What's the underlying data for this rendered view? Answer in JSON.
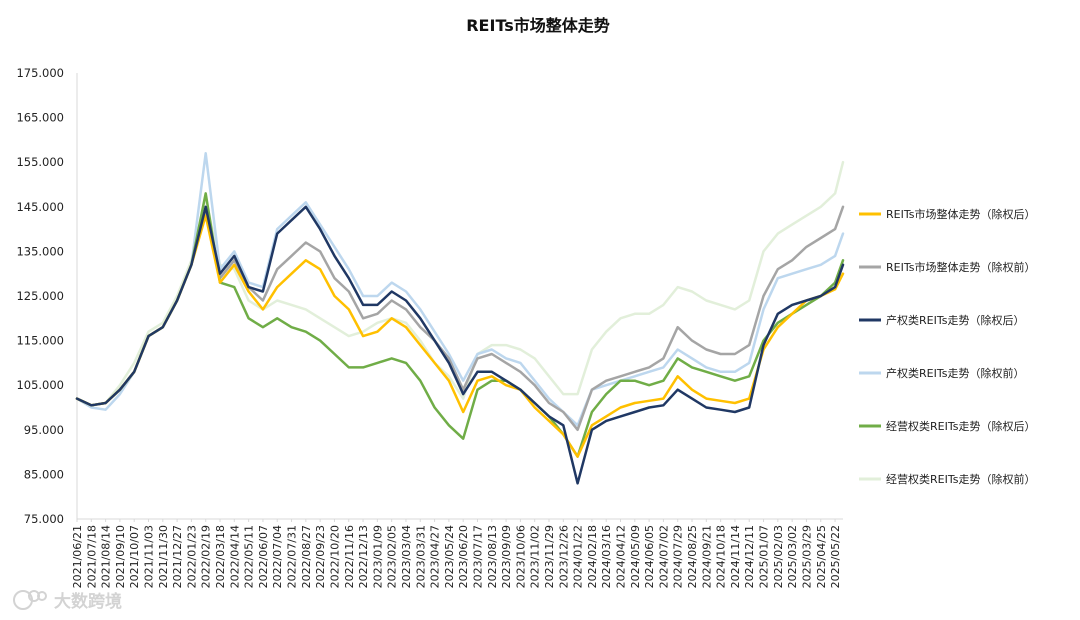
{
  "chart_data": {
    "type": "line",
    "title": "REITs市场整体走势",
    "xlabel": "",
    "ylabel": "",
    "ylim": [
      75,
      175
    ],
    "yticks": [
      "75.000",
      "85.000",
      "95.000",
      "105.000",
      "115.000",
      "125.000",
      "135.000",
      "145.000",
      "155.000",
      "165.000",
      "175.000"
    ],
    "grid": false,
    "legend_position": "right",
    "x_tick_labels": [
      "2021/06/21",
      "2021/07/18",
      "2021/08/14",
      "2021/09/10",
      "2021/10/07",
      "2021/11/03",
      "2021/11/30",
      "2021/12/27",
      "2022/01/23",
      "2022/02/19",
      "2022/03/18",
      "2022/04/14",
      "2022/05/11",
      "2022/06/07",
      "2022/07/04",
      "2022/07/31",
      "2022/08/27",
      "2022/09/23",
      "2022/10/20",
      "2022/11/16",
      "2022/12/13",
      "2023/01/09",
      "2023/02/05",
      "2023/03/04",
      "2023/03/31",
      "2023/04/27",
      "2023/05/24",
      "2023/06/20",
      "2023/07/17",
      "2023/08/13",
      "2023/09/09",
      "2023/10/06",
      "2023/11/02",
      "2023/11/29",
      "2023/12/26",
      "2024/01/22",
      "2024/02/18",
      "2024/03/16",
      "2024/04/12",
      "2024/05/09",
      "2024/06/05",
      "2024/07/02",
      "2024/07/29",
      "2024/08/25",
      "2024/09/21",
      "2024/10/18",
      "2024/11/14",
      "2024/12/11",
      "2025/01/07",
      "2025/02/03",
      "2025/03/02",
      "2025/03/29",
      "2025/04/25",
      "2025/05/22"
    ],
    "x": [
      "2021/06/21",
      "2021/07/18",
      "2021/08/14",
      "2021/09/10",
      "2021/10/07",
      "2021/11/03",
      "2021/11/30",
      "2021/12/27",
      "2022/01/23",
      "2022/02/19",
      "2022/03/18",
      "2022/04/14",
      "2022/05/11",
      "2022/06/07",
      "2022/07/04",
      "2022/07/31",
      "2022/08/27",
      "2022/09/23",
      "2022/10/20",
      "2022/11/16",
      "2022/12/13",
      "2023/01/09",
      "2023/02/05",
      "2023/03/04",
      "2023/03/31",
      "2023/04/27",
      "2023/05/24",
      "2023/06/20",
      "2023/07/17",
      "2023/08/13",
      "2023/09/09",
      "2023/10/06",
      "2023/11/02",
      "2023/11/29",
      "2023/12/26",
      "2024/01/22",
      "2024/02/18",
      "2024/03/16",
      "2024/04/12",
      "2024/05/09",
      "2024/06/05",
      "2024/07/02",
      "2024/07/29",
      "2024/08/25",
      "2024/09/21",
      "2024/10/18",
      "2024/11/14",
      "2024/12/11",
      "2025/01/07",
      "2025/02/03",
      "2025/03/02",
      "2025/03/29",
      "2025/04/25",
      "2025/05/22",
      "2025/06/06"
    ],
    "series": [
      {
        "name": "REITs市场整体走势（除权后）",
        "color": "#FFC000",
        "width": 2.5,
        "values": [
          102,
          100.5,
          101,
          104,
          108,
          116,
          118,
          124,
          132,
          143,
          128,
          132,
          126,
          122,
          127,
          130,
          133,
          131,
          125,
          122,
          116,
          117,
          120,
          118,
          114,
          110,
          106,
          99,
          106,
          107,
          105,
          104,
          100,
          97,
          94,
          89,
          96,
          98,
          100,
          101,
          101.5,
          102,
          107,
          104,
          102,
          101.5,
          101,
          102,
          113,
          118,
          121,
          124,
          125,
          126.5,
          130
        ]
      },
      {
        "name": "REITs市场整体走势（除权前）",
        "color": "#A5A5A5",
        "width": 2.5,
        "values": [
          102,
          100.5,
          101,
          104,
          108,
          116,
          118,
          124,
          132,
          144,
          129,
          133,
          127,
          124,
          131,
          134,
          137,
          135,
          129,
          126,
          120,
          121,
          124,
          122,
          118,
          115,
          111,
          104,
          111,
          112,
          110,
          108,
          105,
          101,
          99,
          95,
          104,
          106,
          107,
          108,
          109,
          111,
          118,
          115,
          113,
          112,
          112,
          114,
          125,
          131,
          133,
          136,
          138,
          140,
          145
        ]
      },
      {
        "name": "产权类REITs走势（除权后）",
        "color": "#203864",
        "width": 2.5,
        "values": [
          102,
          100.5,
          101,
          104,
          108,
          116,
          118,
          124,
          132,
          145,
          130,
          134,
          127,
          126,
          139,
          142,
          145,
          140,
          134,
          129,
          123,
          123,
          126,
          124,
          120,
          115,
          110,
          103,
          108,
          108,
          106,
          104,
          101,
          98,
          96,
          83,
          95,
          97,
          98,
          99,
          100,
          100.5,
          104,
          102,
          100,
          99.5,
          99,
          100,
          114,
          121,
          123,
          124,
          125,
          127,
          132
        ]
      },
      {
        "name": "产权类REITs走势（除权前）",
        "color": "#BDD7EE",
        "width": 2.5,
        "values": [
          102,
          100,
          99.5,
          103,
          108,
          116,
          118,
          124,
          132,
          157,
          131,
          135,
          128,
          127,
          140,
          143,
          146,
          141,
          136,
          131,
          125,
          125,
          128,
          126,
          122,
          117,
          112,
          106,
          112,
          113,
          111,
          110,
          106,
          102,
          99,
          96,
          104,
          105,
          106,
          107,
          108,
          109,
          113,
          111,
          109,
          108,
          108,
          110,
          122,
          129,
          130,
          131,
          132,
          134,
          139
        ]
      },
      {
        "name": "经营权类REITs走势（除权后）",
        "color": "#70AD47",
        "width": 2.5,
        "values": [
          102,
          100.5,
          101,
          104,
          108,
          116,
          118,
          124,
          132,
          148,
          128,
          127,
          120,
          118,
          120,
          118,
          117,
          115,
          112,
          109,
          109,
          110,
          111,
          110,
          106,
          100,
          96,
          93,
          104,
          106,
          106,
          104,
          101,
          98,
          94,
          89,
          99,
          103,
          106,
          106,
          105,
          106,
          111,
          109,
          108,
          107,
          106,
          107,
          115,
          119,
          121,
          123,
          125,
          128,
          133
        ]
      },
      {
        "name": "经营权类REITs走势（除权前）",
        "color": "#E2EFDA",
        "width": 2.5,
        "values": [
          102,
          100.5,
          101,
          105,
          110,
          117,
          119,
          125,
          133,
          147,
          132,
          131,
          124,
          122,
          124,
          123,
          122,
          120,
          118,
          116,
          117,
          119,
          120,
          119,
          115,
          110,
          107,
          102,
          112,
          114,
          114,
          113,
          111,
          107,
          103,
          103,
          113,
          117,
          120,
          121,
          121,
          123,
          127,
          126,
          124,
          123,
          122,
          124,
          135,
          139,
          141,
          143,
          145,
          148,
          155
        ]
      }
    ]
  },
  "watermark": {
    "text": "大数跨境"
  }
}
